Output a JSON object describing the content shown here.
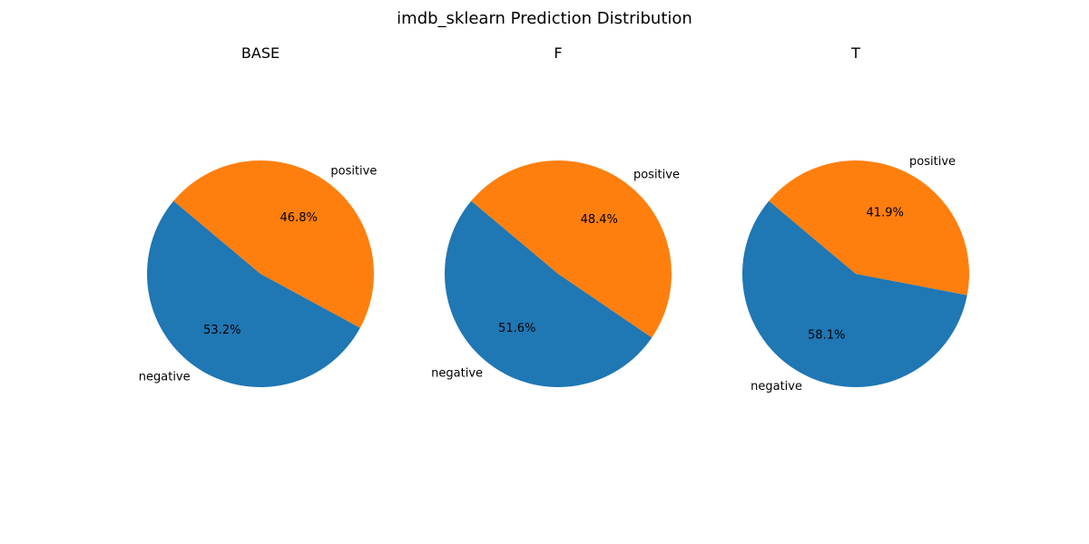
{
  "figure": {
    "title": "imdb_sklearn Prediction Distribution"
  },
  "chart_data": [
    {
      "type": "pie",
      "title": "BASE",
      "labels": [
        "negative",
        "positive"
      ],
      "values": [
        53.2,
        46.8
      ],
      "value_labels": [
        "53.2%",
        "46.8%"
      ],
      "colors": [
        "#1f77b4",
        "#ff7f0e"
      ]
    },
    {
      "type": "pie",
      "title": "F",
      "labels": [
        "negative",
        "positive"
      ],
      "values": [
        51.6,
        48.4
      ],
      "value_labels": [
        "51.6%",
        "48.4%"
      ],
      "colors": [
        "#1f77b4",
        "#ff7f0e"
      ]
    },
    {
      "type": "pie",
      "title": "T",
      "labels": [
        "negative",
        "positive"
      ],
      "values": [
        58.1,
        41.9
      ],
      "value_labels": [
        "58.1%",
        "41.9%"
      ],
      "colors": [
        "#1f77b4",
        "#ff7f0e"
      ]
    }
  ]
}
